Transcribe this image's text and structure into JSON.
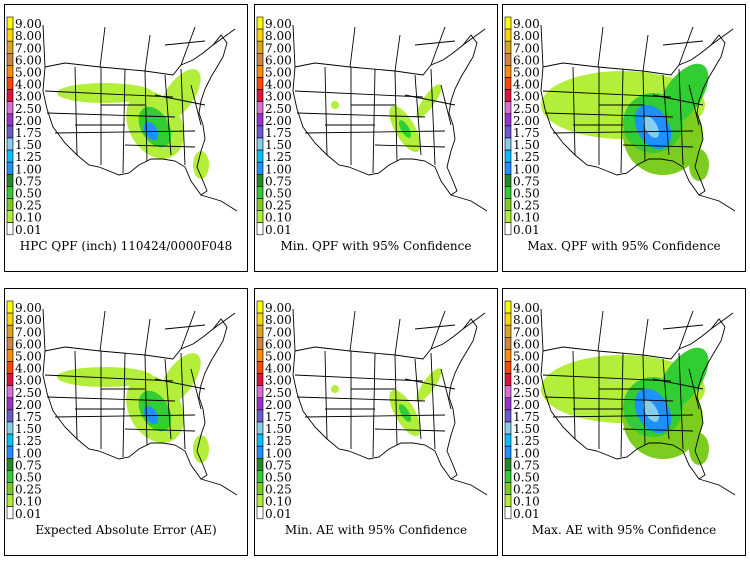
{
  "legend": {
    "levels": [
      "0.01",
      "0.10",
      "0.25",
      "0.50",
      "0.75",
      "1.00",
      "1.25",
      "1.50",
      "1.75",
      "2.00",
      "2.50",
      "3.00",
      "4.00",
      "5.00",
      "6.00",
      "7.00",
      "8.00",
      "9.00"
    ],
    "colors": [
      "#ffffff",
      "#b3ee3a",
      "#7ccd1f",
      "#32cd32",
      "#228b22",
      "#1e90ff",
      "#00bfff",
      "#87ceeb",
      "#6a5acd",
      "#9932cc",
      "#da70d6",
      "#dc143c",
      "#ff4500",
      "#ff8c00",
      "#cd853f",
      "#daa520",
      "#ffd700",
      "#ffff00"
    ]
  },
  "panels": [
    {
      "caption": "HPC QPF (inch) 110424/0000F048",
      "intensity": 2
    },
    {
      "caption": "Min. QPF with 95% Confidence",
      "intensity": 1
    },
    {
      "caption": "Max. QPF with 95% Confidence",
      "intensity": 3
    },
    {
      "caption": "Expected Absolute Error (AE)",
      "intensity": 2
    },
    {
      "caption": "Min. AE with 95% Confidence",
      "intensity": 1
    },
    {
      "caption": "Max. AE with 95% Confidence",
      "intensity": 3
    }
  ]
}
